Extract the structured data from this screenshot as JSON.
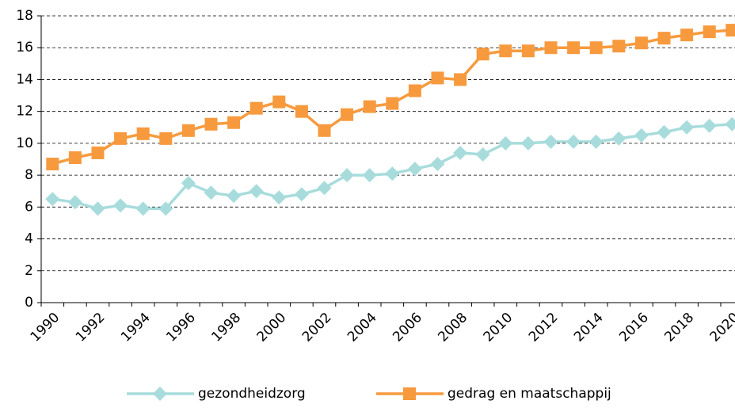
{
  "chart_data": {
    "type": "line",
    "categories": [
      "1990",
      null,
      "1992",
      null,
      "1994",
      null,
      "1996",
      null,
      "1998",
      null,
      "2000",
      null,
      "2002",
      null,
      "2004",
      null,
      "2006",
      null,
      "2008",
      null,
      "2010",
      null,
      "2012",
      null,
      "2014",
      null,
      "2016",
      null,
      "2018",
      null,
      "2020"
    ],
    "series": [
      {
        "name": "gezondheidzorg",
        "color": "#a8dcdc",
        "marker": "diamond",
        "values": [
          6.5,
          6.3,
          5.9,
          6.1,
          5.9,
          5.9,
          7.5,
          6.9,
          6.7,
          7.0,
          6.6,
          6.8,
          7.2,
          8.0,
          8.0,
          8.1,
          8.4,
          8.7,
          9.4,
          9.3,
          10.0,
          10.0,
          10.1,
          10.1,
          10.1,
          10.3,
          10.5,
          10.7,
          11.0,
          11.1,
          11.2
        ]
      },
      {
        "name": "gedrag en maatschappij",
        "color": "#f79a3e",
        "marker": "square",
        "values": [
          8.7,
          9.1,
          9.4,
          10.3,
          10.6,
          10.3,
          10.8,
          11.2,
          11.3,
          12.2,
          12.6,
          12.0,
          10.8,
          11.8,
          12.3,
          12.5,
          13.3,
          14.1,
          14.0,
          15.6,
          15.8,
          15.8,
          16.0,
          16.0,
          16.0,
          16.1,
          16.3,
          16.6,
          16.8,
          17.0,
          17.1
        ]
      }
    ],
    "ylim": [
      0,
      18
    ],
    "yticks": [
      0,
      2,
      4,
      6,
      8,
      10,
      12,
      14,
      16,
      18
    ],
    "grid": true,
    "legend": "bottom"
  }
}
